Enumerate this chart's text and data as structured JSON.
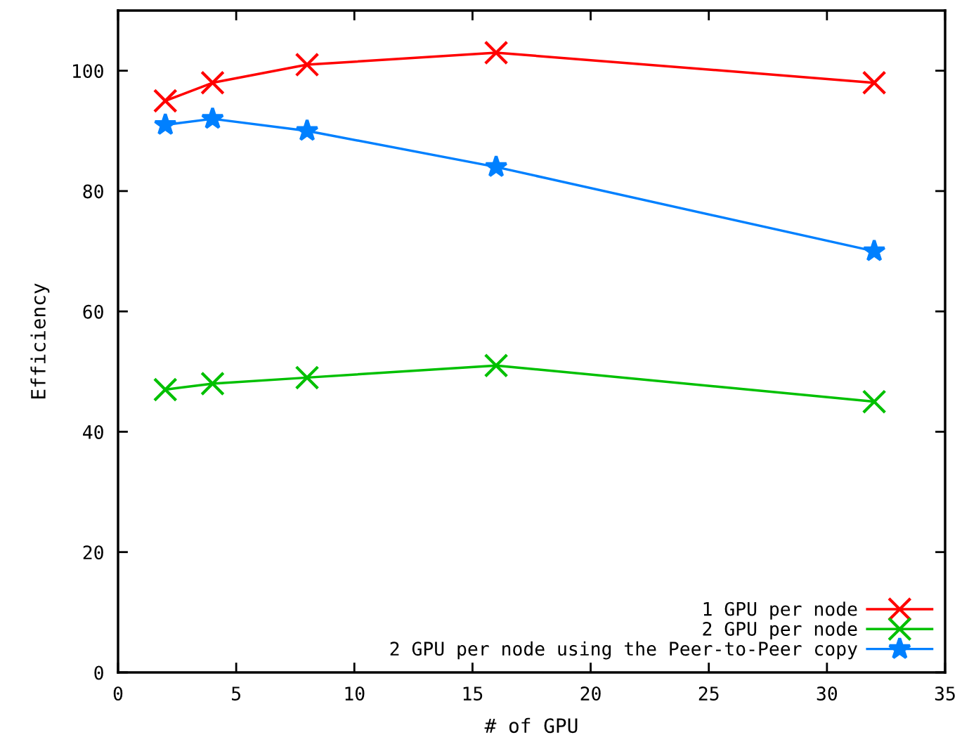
{
  "chart_data": {
    "type": "line",
    "xlabel": "# of GPU",
    "ylabel": "Efficiency",
    "x": [
      2,
      4,
      8,
      16,
      32
    ],
    "series": [
      {
        "name": "1 GPU per node",
        "color": "#ff0000",
        "marker": "cross",
        "values": [
          95,
          98,
          101,
          103,
          98
        ]
      },
      {
        "name": "2 GPU per node",
        "color": "#00c000",
        "marker": "cross",
        "values": [
          47,
          48,
          49,
          51,
          45
        ]
      },
      {
        "name": "2 GPU per node using the Peer-to-Peer copy",
        "color": "#0080ff",
        "marker": "star",
        "values": [
          91,
          92,
          90,
          84,
          70
        ]
      }
    ],
    "xlim": [
      0,
      35
    ],
    "xticks": [
      0,
      5,
      10,
      15,
      20,
      25,
      30,
      35
    ],
    "ylim": [
      0,
      110
    ],
    "yticks": [
      0,
      20,
      40,
      60,
      80,
      100
    ],
    "grid": false,
    "legend": "bottom right",
    "line_style": "solid"
  }
}
